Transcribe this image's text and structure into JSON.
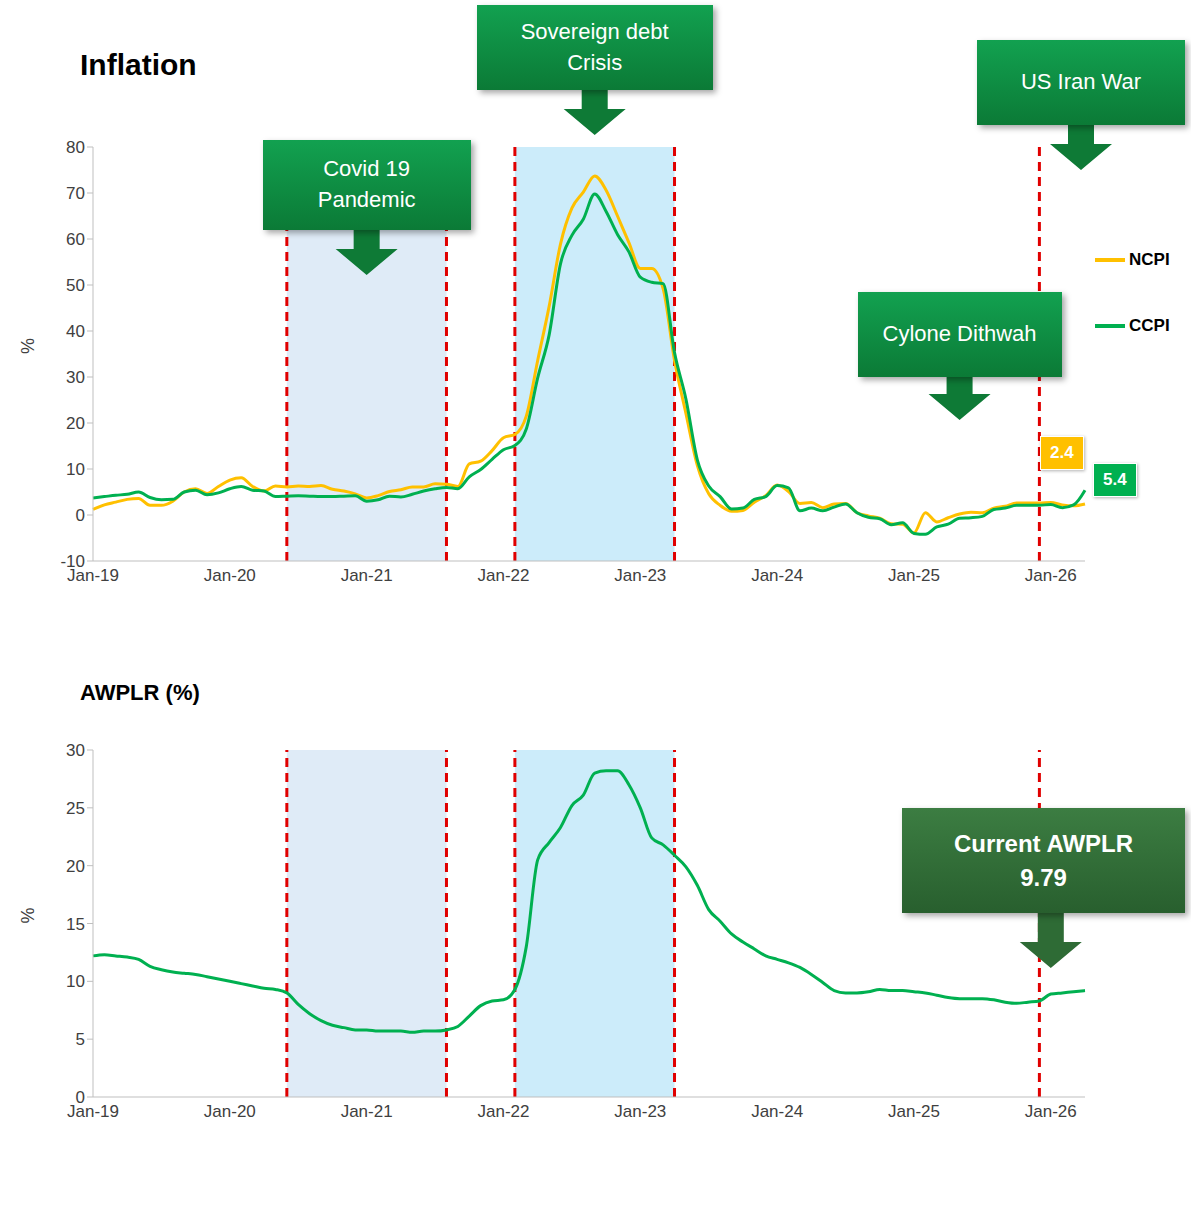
{
  "chart_data": [
    {
      "type": "line",
      "title": "Inflation",
      "y_label": "%",
      "legend": "right",
      "grid": false,
      "x": [
        "Jan-19",
        null,
        null,
        null,
        null,
        null,
        null,
        null,
        null,
        null,
        null,
        null,
        "Jan-20",
        null,
        null,
        null,
        null,
        null,
        null,
        null,
        null,
        null,
        null,
        null,
        "Jan-21",
        null,
        null,
        null,
        null,
        null,
        null,
        null,
        null,
        null,
        null,
        null,
        "Jan-22",
        null,
        null,
        null,
        null,
        null,
        null,
        null,
        null,
        null,
        null,
        null,
        "Jan-23",
        null,
        null,
        null,
        null,
        null,
        null,
        null,
        null,
        null,
        null,
        null,
        "Jan-24",
        null,
        null,
        null,
        null,
        null,
        null,
        null,
        null,
        null,
        null,
        null,
        "Jan-25",
        null,
        null,
        null,
        null,
        null,
        null,
        null,
        null,
        null,
        null,
        null,
        "Jan-26",
        null,
        null,
        null
      ],
      "ylim": [
        -10,
        80
      ],
      "yticks": [
        -10,
        0,
        10,
        20,
        30,
        40,
        50,
        60,
        70,
        80
      ],
      "series": [
        {
          "name": "NCPI",
          "color": "#FFC000",
          "values": [
            1.2,
            2.2,
            2.8,
            3.4,
            3.6,
            2.1,
            2.1,
            3.0,
            5.0,
            5.7,
            4.7,
            6.2,
            7.6,
            8.1,
            6.2,
            5.2,
            6.3,
            6.1,
            6.3,
            6.2,
            6.4,
            5.6,
            5.2,
            4.6,
            3.7,
            4.2,
            5.1,
            5.5,
            6.1,
            6.1,
            6.8,
            6.7,
            6.2,
            11.1,
            11.7,
            14.0,
            16.8,
            17.5,
            21.5,
            33.6,
            45.3,
            58.9,
            66.7,
            70.2,
            73.7,
            70.6,
            65.0,
            59.2,
            53.6,
            53.6,
            49.2,
            33.6,
            22.1,
            10.8,
            4.6,
            2.1,
            0.8,
            1.0,
            2.8,
            4.2,
            6.5,
            5.1,
            2.5,
            2.7,
            1.6,
            2.4,
            2.5,
            0.5,
            -0.2,
            -0.7,
            -1.9,
            -2.0,
            -3.9,
            0.5,
            -1.5,
            -0.6,
            0.2,
            0.6,
            0.5,
            1.5,
            1.9,
            2.6,
            2.6,
            2.6,
            2.7,
            2.2,
            2.0,
            2.4
          ]
        },
        {
          "name": "CCPI",
          "color": "#00B050",
          "values": [
            3.7,
            4.0,
            4.3,
            4.5,
            5.0,
            3.8,
            3.3,
            3.4,
            5.0,
            5.4,
            4.4,
            4.8,
            5.7,
            6.2,
            5.4,
            5.2,
            4.0,
            4.1,
            4.2,
            4.1,
            4.0,
            4.0,
            4.1,
            4.2,
            3.0,
            3.3,
            4.1,
            3.9,
            4.5,
            5.2,
            5.7,
            6.0,
            5.7,
            8.3,
            9.9,
            12.1,
            14.2,
            15.1,
            18.7,
            29.8,
            39.1,
            54.6,
            60.8,
            64.3,
            69.8,
            66.0,
            61.0,
            57.2,
            51.7,
            50.6,
            50.3,
            35.3,
            25.2,
            12.0,
            6.3,
            4.0,
            1.3,
            1.5,
            3.4,
            4.0,
            6.4,
            5.9,
            0.9,
            1.5,
            0.9,
            1.7,
            2.4,
            0.5,
            -0.5,
            -0.8,
            -2.1,
            -1.7,
            -4.0,
            -4.2,
            -2.6,
            -2.0,
            -0.7,
            -0.6,
            -0.3,
            1.2,
            1.5,
            2.1,
            2.1,
            2.1,
            2.3,
            1.6,
            2.2,
            5.4
          ]
        }
      ],
      "annotations": [
        {
          "text": "Covid 19 Pandemic",
          "start": 17,
          "end": 31
        },
        {
          "text": "Sovereign debt Crisis",
          "start": 37,
          "end": 51
        },
        {
          "text": "Cylone Dithwah",
          "x": 76
        },
        {
          "text": "US Iran War",
          "start": 83
        },
        {
          "text": "2.4",
          "series": "NCPI"
        },
        {
          "text": "5.4",
          "series": "CCPI"
        }
      ]
    },
    {
      "type": "line",
      "title": "AWPLR (%)",
      "y_label": "%",
      "grid": false,
      "x": [
        "Jan-19",
        null,
        null,
        null,
        null,
        null,
        null,
        null,
        null,
        null,
        null,
        null,
        "Jan-20",
        null,
        null,
        null,
        null,
        null,
        null,
        null,
        null,
        null,
        null,
        null,
        "Jan-21",
        null,
        null,
        null,
        null,
        null,
        null,
        null,
        null,
        null,
        null,
        null,
        "Jan-22",
        null,
        null,
        null,
        null,
        null,
        null,
        null,
        null,
        null,
        null,
        null,
        "Jan-23",
        null,
        null,
        null,
        null,
        null,
        null,
        null,
        null,
        null,
        null,
        null,
        "Jan-24",
        null,
        null,
        null,
        null,
        null,
        null,
        null,
        null,
        null,
        null,
        null,
        "Jan-25",
        null,
        null,
        null,
        null,
        null,
        null,
        null,
        null,
        null,
        null,
        null,
        "Jan-26",
        null,
        null,
        null
      ],
      "ylim": [
        0,
        30
      ],
      "yticks": [
        0,
        5,
        10,
        15,
        20,
        25,
        30
      ],
      "series": [
        {
          "name": "AWPLR",
          "color": "#00B050",
          "values": [
            12.2,
            12.3,
            12.2,
            12.1,
            11.9,
            11.3,
            11.0,
            10.8,
            10.7,
            10.6,
            10.4,
            10.2,
            10.0,
            9.8,
            9.6,
            9.4,
            9.3,
            9.0,
            8.0,
            7.2,
            6.6,
            6.2,
            6.0,
            5.8,
            5.8,
            5.7,
            5.7,
            5.7,
            5.6,
            5.7,
            5.7,
            5.8,
            6.1,
            7.0,
            7.9,
            8.3,
            8.4,
            9.3,
            13.0,
            20.5,
            22.0,
            23.3,
            25.2,
            26.1,
            28.0,
            28.2,
            28.2,
            27.0,
            25.0,
            22.4,
            21.8,
            20.9,
            19.9,
            18.3,
            16.2,
            15.2,
            14.1,
            13.4,
            12.8,
            12.2,
            11.9,
            11.6,
            11.2,
            10.6,
            9.9,
            9.2,
            9.0,
            9.0,
            9.1,
            9.3,
            9.2,
            9.2,
            9.1,
            9.0,
            8.8,
            8.6,
            8.5,
            8.5,
            8.5,
            8.4,
            8.2,
            8.1,
            8.2,
            8.3,
            8.9,
            9.0,
            9.1,
            9.2
          ]
        }
      ],
      "annotations": [
        {
          "text": "Current AWPLR",
          "value": 9.79,
          "x": 84
        }
      ]
    }
  ]
}
